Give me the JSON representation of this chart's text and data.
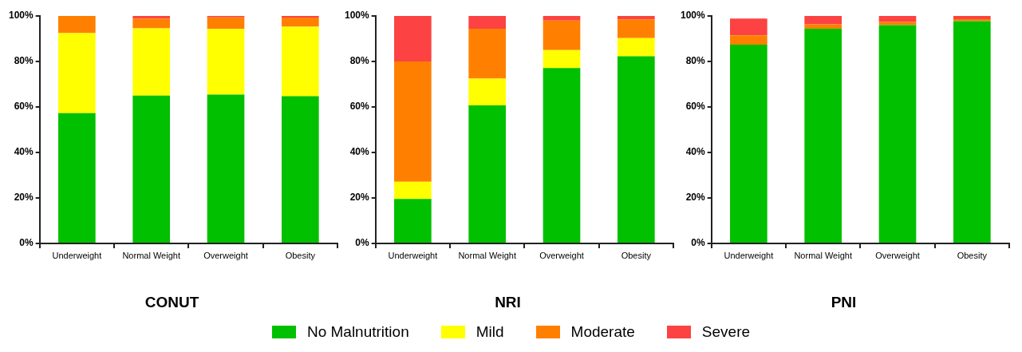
{
  "chart_data": [
    {
      "type": "bar",
      "title": "CONUT",
      "stacked": true,
      "categories": [
        "Underweight",
        "Normal Weight",
        "Overweight",
        "Obesity"
      ],
      "ylim": [
        0,
        100
      ],
      "yticks": [
        {
          "value": 0,
          "label": "0%"
        },
        {
          "value": 20,
          "label": "20%"
        },
        {
          "value": 40,
          "label": "40%"
        },
        {
          "value": 60,
          "label": "60%"
        },
        {
          "value": 80,
          "label": "80%"
        },
        {
          "value": 100,
          "label": "100%"
        }
      ],
      "grid": false,
      "legend": "bottom",
      "series": [
        {
          "name": "No Malnutrition",
          "color": "#00c000",
          "values": [
            57.3,
            65.0,
            65.4,
            64.7
          ]
        },
        {
          "name": "Mild",
          "color": "#ffff00",
          "values": [
            35.2,
            29.6,
            28.9,
            30.6
          ]
        },
        {
          "name": "Moderate",
          "color": "#ff8000",
          "values": [
            7.5,
            4.3,
            5.1,
            4.0
          ]
        },
        {
          "name": "Severe",
          "color": "#fc4242",
          "values": [
            0,
            1.1,
            0.6,
            0.7
          ]
        }
      ]
    },
    {
      "type": "bar",
      "title": "NRI",
      "stacked": true,
      "categories": [
        "Underweight",
        "Normal Weight",
        "Overweight",
        "Obesity"
      ],
      "ylim": [
        0,
        100
      ],
      "yticks": [
        {
          "value": 0,
          "label": "0%"
        },
        {
          "value": 20,
          "label": "20%"
        },
        {
          "value": 40,
          "label": "40%"
        },
        {
          "value": 60,
          "label": "60%"
        },
        {
          "value": 80,
          "label": "80%"
        },
        {
          "value": 100,
          "label": "100%"
        }
      ],
      "grid": false,
      "series": [
        {
          "color": "#00c000",
          "values": [
            19.6,
            60.7,
            77.1,
            82.3
          ]
        },
        {
          "color": "#ffff00",
          "values": [
            7.5,
            11.8,
            7.9,
            8.0
          ]
        },
        {
          "color": "#ff8000",
          "values": [
            52.9,
            21.9,
            13.0,
            8.2
          ]
        },
        {
          "color": "#fc4242",
          "values": [
            20.0,
            5.6,
            2.0,
            1.5
          ]
        }
      ]
    },
    {
      "type": "bar",
      "title": "PNI",
      "stacked": true,
      "categories": [
        "Underweight",
        "Normal Weight",
        "Overweight",
        "Obesity"
      ],
      "ylim": [
        0,
        100
      ],
      "yticks": [
        {
          "value": 0,
          "label": "0%"
        },
        {
          "value": 20,
          "label": "20%"
        },
        {
          "value": 40,
          "label": "40%"
        },
        {
          "value": 60,
          "label": "60%"
        },
        {
          "value": 80,
          "label": "80%"
        },
        {
          "value": 100,
          "label": "100%"
        }
      ],
      "grid": false,
      "series": [
        {
          "color": "#00c000",
          "values": [
            87.4,
            94.4,
            96.0,
            97.7
          ]
        },
        {
          "color": "#ffff00",
          "values": [
            0,
            0,
            0,
            0
          ]
        },
        {
          "color": "#ff8000",
          "values": [
            4.1,
            1.9,
            1.5,
            0.9
          ]
        },
        {
          "color": "#fc4242",
          "values": [
            7.4,
            3.7,
            2.5,
            1.4
          ]
        }
      ]
    }
  ]
}
